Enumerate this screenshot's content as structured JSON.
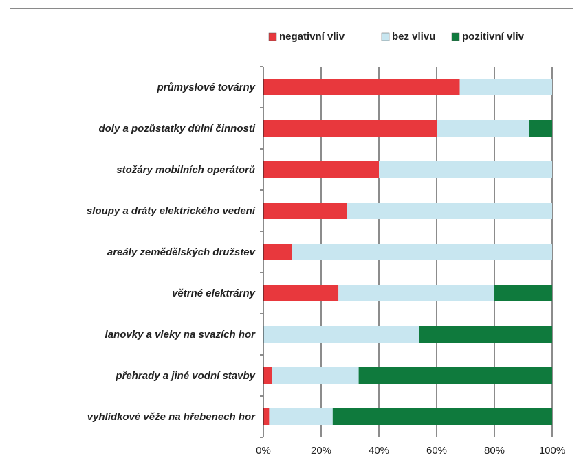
{
  "chart_data": {
    "type": "bar",
    "orientation": "horizontal",
    "stacked": true,
    "percent": true,
    "title": "",
    "xlabel": "",
    "ylabel": "",
    "xlim": [
      0,
      100
    ],
    "x_ticks": [
      "0%",
      "20%",
      "40%",
      "60%",
      "80%",
      "100%"
    ],
    "grid": "vertical",
    "legend_position": "top",
    "categories": [
      "průmyslové továrny",
      "doly a pozůstatky důlní činnosti",
      "stožáry mobilních operátorů",
      "sloupy a dráty elektrického vedení",
      "areály zemědělských družstev",
      "větrné elektrárny",
      "lanovky a vleky na svazích hor",
      "přehrady a jiné vodní stavby",
      "vyhlídkové věže na hřebenech hor"
    ],
    "series": [
      {
        "name": "negativní vliv",
        "color": "#e8383d",
        "values": [
          68,
          60,
          40,
          29,
          10,
          26,
          0,
          3,
          2
        ]
      },
      {
        "name": "bez vlivu",
        "color": "#c8e6f0",
        "values": [
          32,
          32,
          60,
          71,
          90,
          54,
          54,
          30,
          22
        ]
      },
      {
        "name": "pozitivní vliv",
        "color": "#0f7a3d",
        "values": [
          0,
          8,
          0,
          0,
          0,
          20,
          46,
          67,
          76
        ]
      }
    ]
  }
}
